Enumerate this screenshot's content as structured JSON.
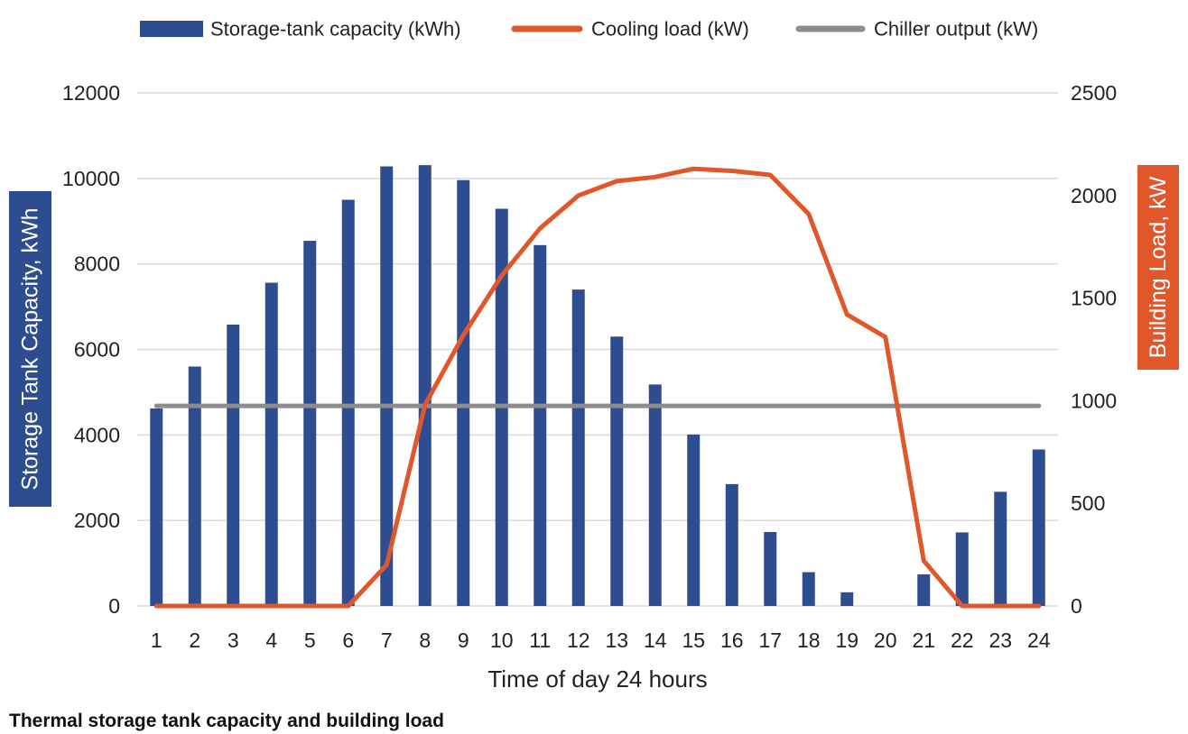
{
  "chart_data": {
    "type": "bar",
    "title": "",
    "caption": "Thermal storage tank capacity and building load",
    "xlabel": "Time of day 24 hours",
    "ylabel_left": "Storage Tank Capacity, kWh",
    "ylabel_right": "Building Load, kW",
    "categories": [
      "1",
      "2",
      "3",
      "4",
      "5",
      "6",
      "7",
      "8",
      "9",
      "10",
      "11",
      "12",
      "13",
      "14",
      "15",
      "16",
      "17",
      "18",
      "19",
      "20",
      "21",
      "22",
      "23",
      "24"
    ],
    "ylim_left": [
      0,
      12000
    ],
    "yticks_left": [
      0,
      2000,
      4000,
      6000,
      8000,
      10000,
      12000
    ],
    "yticks_left_labels": [
      "0",
      "2000",
      "4000",
      "6000",
      "8000",
      "10000",
      "12000"
    ],
    "ylim_right": [
      0,
      2500
    ],
    "yticks_right": [
      0,
      500,
      1000,
      1500,
      2000,
      2500
    ],
    "yticks_right_labels": [
      "0",
      "500",
      "1000",
      "1500",
      "2000",
      "2500"
    ],
    "grid": true,
    "legend_position": "top",
    "series": [
      {
        "name": "Storage-tank capacity (kWh)",
        "type": "bar",
        "axis": "left",
        "color": "#2e4d91",
        "values": [
          4620,
          5600,
          6580,
          7560,
          8540,
          9500,
          10280,
          10310,
          9960,
          9290,
          8440,
          7400,
          6300,
          5180,
          4010,
          2850,
          1730,
          790,
          320,
          0,
          740,
          1720,
          2670,
          3660
        ]
      },
      {
        "name": "Cooling load (kW)",
        "type": "line",
        "axis": "right",
        "color": "#e1572c",
        "values": [
          0,
          0,
          0,
          0,
          0,
          0,
          200,
          980,
          1320,
          1610,
          1840,
          2000,
          2070,
          2090,
          2130,
          2120,
          2100,
          1910,
          1420,
          1310,
          220,
          0,
          0,
          0
        ]
      },
      {
        "name": "Chiller output (kW)",
        "type": "line",
        "axis": "right",
        "color": "#8c8c8c",
        "values": [
          975,
          975,
          975,
          975,
          975,
          975,
          975,
          975,
          975,
          975,
          975,
          975,
          975,
          975,
          975,
          975,
          975,
          975,
          975,
          975,
          975,
          975,
          975,
          975
        ]
      }
    ]
  }
}
